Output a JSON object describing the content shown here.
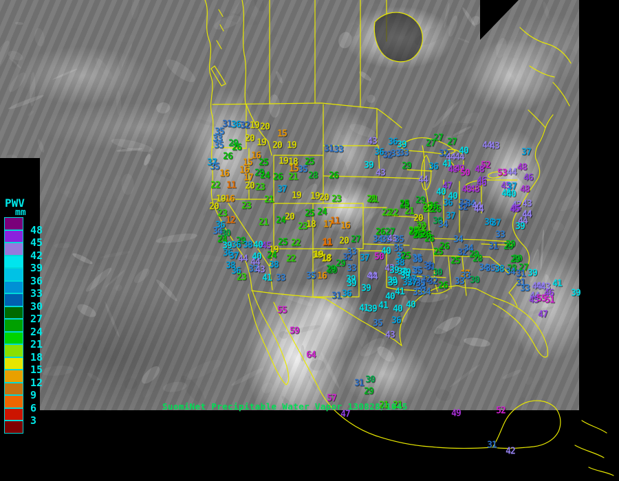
{
  "caption": {
    "text": "SuomiNet Precipitable Water Vapor 130828/1045",
    "color": "#00dd55"
  },
  "legend": {
    "title": "PWV",
    "unit": "mm",
    "text_color": "#00e8e8",
    "entries": [
      {
        "label": "48",
        "color": "#7a007a"
      },
      {
        "label": "45",
        "color": "#8a22dd"
      },
      {
        "label": "42",
        "color": "#9778dd"
      },
      {
        "label": "39",
        "color": "#00e5ee"
      },
      {
        "label": "36",
        "color": "#00c2e5"
      },
      {
        "label": "33",
        "color": "#0090d5"
      },
      {
        "label": "30",
        "color": "#0060b0"
      },
      {
        "label": "27",
        "color": "#006a00"
      },
      {
        "label": "24",
        "color": "#00a000"
      },
      {
        "label": "21",
        "color": "#00d400"
      },
      {
        "label": "18",
        "color": "#8ae000"
      },
      {
        "label": "15",
        "color": "#e6e600"
      },
      {
        "label": "12",
        "color": "#e8a000"
      },
      {
        "label": "9",
        "color": "#c87410"
      },
      {
        "label": "6",
        "color": "#ee6600"
      },
      {
        "label": "3",
        "color": "#cc1400"
      },
      {
        "label": "",
        "color": "#7e0000"
      }
    ]
  },
  "colors": {
    "map_lines": "#e8e800",
    "background": "#000000"
  },
  "color_scale": [
    {
      "min": 50,
      "color": "#d020d0"
    },
    {
      "min": 48,
      "color": "#aa30d8"
    },
    {
      "min": 45,
      "color": "#9040e0"
    },
    {
      "min": 42,
      "color": "#9480ee"
    },
    {
      "min": 39,
      "color": "#00dde8"
    },
    {
      "min": 36,
      "color": "#00a0dd"
    },
    {
      "min": 33,
      "color": "#2e7ed2"
    },
    {
      "min": 31,
      "color": "#2a6cc4"
    },
    {
      "min": 30,
      "color": "#00a848"
    },
    {
      "min": 27,
      "color": "#00b81c"
    },
    {
      "min": 24,
      "color": "#00c400"
    },
    {
      "min": 21,
      "color": "#2ad400"
    },
    {
      "min": 18,
      "color": "#d8d800"
    },
    {
      "min": 15,
      "color": "#e89400"
    },
    {
      "min": 11,
      "color": "#e67000"
    },
    {
      "min": 0,
      "color": "#d02800"
    }
  ],
  "stations": [
    [
      330,
      181,
      31
    ],
    [
      343,
      182,
      36
    ],
    [
      356,
      183,
      32
    ],
    [
      370,
      183,
      19
    ],
    [
      385,
      185,
      20
    ],
    [
      319,
      192,
      35
    ],
    [
      316,
      202,
      33
    ],
    [
      410,
      195,
      15
    ],
    [
      318,
      212,
      35
    ],
    [
      339,
      209,
      29
    ],
    [
      344,
      215,
      26
    ],
    [
      363,
      202,
      20
    ],
    [
      380,
      208,
      19
    ],
    [
      403,
      212,
      20
    ],
    [
      424,
      212,
      19
    ],
    [
      478,
      217,
      31
    ],
    [
      492,
      218,
      33
    ],
    [
      331,
      228,
      26
    ],
    [
      372,
      227,
      16
    ],
    [
      360,
      237,
      15
    ],
    [
      383,
      237,
      25
    ],
    [
      412,
      235,
      19
    ],
    [
      426,
      236,
      18
    ],
    [
      450,
      236,
      25
    ],
    [
      308,
      237,
      37
    ],
    [
      312,
      243,
      35
    ],
    [
      355,
      248,
      16
    ],
    [
      377,
      252,
      29
    ],
    [
      427,
      246,
      15
    ],
    [
      440,
      247,
      35
    ],
    [
      326,
      253,
      16
    ],
    [
      361,
      259,
      17
    ],
    [
      385,
      256,
      24
    ],
    [
      404,
      258,
      26
    ],
    [
      426,
      258,
      21
    ],
    [
      455,
      256,
      28
    ],
    [
      485,
      256,
      26
    ],
    [
      313,
      270,
      22
    ],
    [
      336,
      270,
      11
    ],
    [
      363,
      271,
      20
    ],
    [
      378,
      273,
      23
    ],
    [
      410,
      276,
      37
    ],
    [
      321,
      290,
      19
    ],
    [
      334,
      290,
      16
    ],
    [
      358,
      300,
      23
    ],
    [
      391,
      291,
      21
    ],
    [
      431,
      285,
      19
    ],
    [
      458,
      286,
      19
    ],
    [
      471,
      288,
      20
    ],
    [
      489,
      290,
      23
    ],
    [
      311,
      301,
      20
    ],
    [
      323,
      311,
      23
    ],
    [
      335,
      321,
      12
    ],
    [
      320,
      328,
      36
    ],
    [
      450,
      311,
      25
    ],
    [
      468,
      309,
      24
    ],
    [
      408,
      321,
      24
    ],
    [
      421,
      316,
      20
    ],
    [
      383,
      324,
      21
    ],
    [
      440,
      330,
      23
    ],
    [
      452,
      327,
      18
    ],
    [
      477,
      327,
      17
    ],
    [
      487,
      322,
      11
    ],
    [
      316,
      337,
      34
    ],
    [
      328,
      340,
      30
    ],
    [
      323,
      349,
      24
    ],
    [
      350,
      351,
      29
    ],
    [
      330,
      358,
      39
    ],
    [
      343,
      357,
      36
    ],
    [
      360,
      357,
      38
    ],
    [
      375,
      357,
      40
    ],
    [
      387,
      358,
      45
    ],
    [
      398,
      364,
      19
    ],
    [
      411,
      353,
      25
    ],
    [
      430,
      354,
      22
    ],
    [
      475,
      354,
      11
    ],
    [
      331,
      369,
      36
    ],
    [
      340,
      373,
      37
    ],
    [
      353,
      377,
      44
    ],
    [
      373,
      374,
      40
    ],
    [
      371,
      382,
      44
    ],
    [
      395,
      372,
      24
    ],
    [
      423,
      377,
      22
    ],
    [
      461,
      372,
      19
    ],
    [
      475,
      376,
      18
    ],
    [
      335,
      387,
      38
    ],
    [
      398,
      386,
      38
    ],
    [
      343,
      395,
      36
    ],
    [
      368,
      392,
      33
    ],
    [
      378,
      393,
      43
    ],
    [
      483,
      394,
      29
    ],
    [
      351,
      404,
      23
    ],
    [
      388,
      405,
      41
    ],
    [
      408,
      405,
      33
    ],
    [
      452,
      402,
      35
    ],
    [
      468,
      402,
      16
    ],
    [
      543,
      291,
      21
    ],
    [
      588,
      299,
      25
    ],
    [
      502,
      329,
      16
    ],
    [
      517,
      349,
      27
    ],
    [
      500,
      351,
      20
    ],
    [
      476,
      353,
      11
    ],
    [
      463,
      371,
      19
    ],
    [
      474,
      377,
      18
    ],
    [
      495,
      384,
      29
    ],
    [
      481,
      392,
      29
    ],
    [
      511,
      367,
      33
    ],
    [
      505,
      375,
      32
    ],
    [
      511,
      391,
      33
    ],
    [
      530,
      376,
      37
    ],
    [
      551,
      374,
      50
    ],
    [
      561,
      366,
      40
    ],
    [
      583,
      374,
      37
    ],
    [
      581,
      383,
      38
    ],
    [
      606,
      376,
      35
    ],
    [
      562,
      310,
      22
    ],
    [
      572,
      310,
      22
    ],
    [
      595,
      308,
      21
    ],
    [
      608,
      318,
      20
    ],
    [
      612,
      329,
      22
    ],
    [
      601,
      336,
      23
    ],
    [
      610,
      342,
      25
    ],
    [
      620,
      342,
      26
    ],
    [
      553,
      338,
      26
    ],
    [
      567,
      338,
      27
    ],
    [
      549,
      349,
      34
    ],
    [
      561,
      349,
      35
    ],
    [
      570,
      348,
      43
    ],
    [
      580,
      349,
      35
    ],
    [
      579,
      362,
      35
    ],
    [
      566,
      391,
      43
    ],
    [
      573,
      394,
      39
    ],
    [
      585,
      396,
      39
    ],
    [
      540,
      402,
      44
    ],
    [
      510,
      407,
      39
    ],
    [
      570,
      409,
      39
    ],
    [
      598,
      407,
      37
    ],
    [
      622,
      387,
      31
    ],
    [
      605,
      394,
      35
    ],
    [
      541,
      206,
      43
    ],
    [
      571,
      207,
      36
    ],
    [
      584,
      211,
      39
    ],
    [
      551,
      222,
      36
    ],
    [
      563,
      226,
      32
    ],
    [
      575,
      224,
      33
    ],
    [
      587,
      223,
      33
    ],
    [
      637,
      201,
      27
    ],
    [
      626,
      209,
      27
    ],
    [
      657,
      207,
      27
    ],
    [
      645,
      224,
      32
    ],
    [
      655,
      229,
      44
    ],
    [
      668,
      229,
      44
    ],
    [
      674,
      220,
      40
    ],
    [
      650,
      239,
      41
    ],
    [
      536,
      241,
      39
    ],
    [
      591,
      242,
      29
    ],
    [
      630,
      243,
      36
    ],
    [
      658,
      247,
      48
    ],
    [
      668,
      246,
      49
    ],
    [
      676,
      252,
      50
    ],
    [
      706,
      241,
      52
    ],
    [
      697,
      247,
      48
    ],
    [
      553,
      252,
      43
    ],
    [
      615,
      262,
      44
    ],
    [
      700,
      263,
      46
    ],
    [
      650,
      271,
      47
    ],
    [
      678,
      276,
      48
    ],
    [
      690,
      276,
      48
    ],
    [
      641,
      280,
      40
    ],
    [
      658,
      286,
      40
    ],
    [
      651,
      296,
      36
    ],
    [
      674,
      296,
      32
    ],
    [
      684,
      297,
      34
    ],
    [
      693,
      300,
      44
    ],
    [
      540,
      290,
      21
    ],
    [
      588,
      297,
      25
    ],
    [
      611,
      292,
      29
    ],
    [
      621,
      301,
      22
    ],
    [
      630,
      300,
      26
    ],
    [
      708,
      212,
      44
    ],
    [
      719,
      213,
      43
    ],
    [
      765,
      222,
      37
    ],
    [
      730,
      252,
      53
    ],
    [
      744,
      251,
      44
    ],
    [
      759,
      244,
      48
    ],
    [
      768,
      259,
      46
    ],
    [
      700,
      267,
      46
    ],
    [
      735,
      271,
      45
    ],
    [
      744,
      272,
      37
    ],
    [
      736,
      282,
      40
    ],
    [
      763,
      276,
      48
    ],
    [
      751,
      299,
      42
    ],
    [
      766,
      297,
      43
    ],
    [
      750,
      304,
      45
    ],
    [
      766,
      312,
      44
    ],
    [
      696,
      304,
      44
    ],
    [
      743,
      283,
      40
    ],
    [
      760,
      322,
      44
    ],
    [
      756,
      330,
      39
    ],
    [
      742,
      356,
      29
    ],
    [
      752,
      377,
      29
    ],
    [
      622,
      305,
      22
    ],
    [
      634,
      305,
      26
    ],
    [
      655,
      315,
      37
    ],
    [
      673,
      302,
      32
    ],
    [
      696,
      305,
      44
    ],
    [
      748,
      305,
      45
    ],
    [
      766,
      313,
      44
    ],
    [
      636,
      322,
      30
    ],
    [
      644,
      327,
      34
    ],
    [
      711,
      324,
      36
    ],
    [
      721,
      325,
      37
    ],
    [
      613,
      332,
      22
    ],
    [
      601,
      338,
      25
    ],
    [
      607,
      343,
      26
    ],
    [
      619,
      342,
      26
    ],
    [
      624,
      348,
      26
    ],
    [
      727,
      342,
      33
    ],
    [
      666,
      349,
      34
    ],
    [
      646,
      359,
      26
    ],
    [
      637,
      367,
      25
    ],
    [
      681,
      362,
      34
    ],
    [
      672,
      368,
      32
    ],
    [
      717,
      359,
      31
    ],
    [
      739,
      359,
      29
    ],
    [
      689,
      371,
      29
    ],
    [
      694,
      377,
      28
    ],
    [
      662,
      380,
      25
    ],
    [
      749,
      378,
      29
    ],
    [
      607,
      378,
      35
    ],
    [
      590,
      373,
      25
    ],
    [
      626,
      389,
      31
    ],
    [
      607,
      395,
      35
    ],
    [
      636,
      397,
      30
    ],
    [
      590,
      397,
      39
    ],
    [
      703,
      390,
      34
    ],
    [
      713,
      391,
      35
    ],
    [
      726,
      392,
      38
    ],
    [
      744,
      391,
      28
    ],
    [
      761,
      390,
      27
    ],
    [
      592,
      412,
      37
    ],
    [
      604,
      410,
      33
    ],
    [
      619,
      407,
      32
    ],
    [
      644,
      416,
      26
    ],
    [
      676,
      399,
      17
    ],
    [
      677,
      402,
      33
    ],
    [
      612,
      417,
      34
    ],
    [
      785,
      417,
      44
    ],
    [
      742,
      396,
      34
    ],
    [
      757,
      399,
      31
    ],
    [
      774,
      398,
      39
    ],
    [
      668,
      410,
      33
    ],
    [
      690,
      408,
      30
    ],
    [
      810,
      413,
      41
    ],
    [
      757,
      412,
      31
    ],
    [
      763,
      420,
      33
    ],
    [
      780,
      417,
      44
    ],
    [
      793,
      418,
      43
    ],
    [
      798,
      427,
      46
    ],
    [
      837,
      427,
      39
    ],
    [
      777,
      431,
      44
    ],
    [
      776,
      437,
      45
    ],
    [
      787,
      435,
      55
    ],
    [
      799,
      437,
      51
    ],
    [
      789,
      458,
      47
    ],
    [
      511,
      413,
      39
    ],
    [
      532,
      420,
      39
    ],
    [
      542,
      403,
      44
    ],
    [
      571,
      412,
      39
    ],
    [
      589,
      402,
      39
    ],
    [
      599,
      412,
      37
    ],
    [
      611,
      413,
      35
    ],
    [
      629,
      410,
      32
    ],
    [
      489,
      431,
      31
    ],
    [
      504,
      428,
      36
    ],
    [
      567,
      432,
      40
    ],
    [
      581,
      425,
      41
    ],
    [
      607,
      426,
      33
    ],
    [
      619,
      425,
      34
    ],
    [
      529,
      449,
      41
    ],
    [
      541,
      450,
      39
    ],
    [
      557,
      445,
      41
    ],
    [
      578,
      450,
      40
    ],
    [
      597,
      444,
      40
    ],
    [
      576,
      467,
      36
    ],
    [
      549,
      471,
      35
    ],
    [
      567,
      488,
      43
    ],
    [
      410,
      452,
      55
    ],
    [
      428,
      482,
      59
    ],
    [
      452,
      517,
      64
    ],
    [
      482,
      580,
      57
    ],
    [
      522,
      558,
      31
    ],
    [
      538,
      553,
      30
    ],
    [
      536,
      570,
      29
    ],
    [
      502,
      603,
      47
    ],
    [
      558,
      590,
      21
    ],
    [
      578,
      590,
      21
    ],
    [
      663,
      602,
      49
    ],
    [
      728,
      598,
      52
    ],
    [
      715,
      648,
      31
    ],
    [
      742,
      657,
      42
    ]
  ]
}
